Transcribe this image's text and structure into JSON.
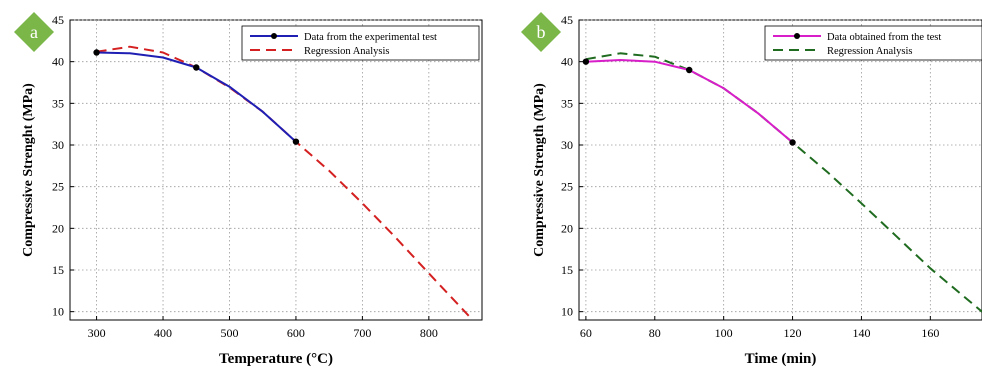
{
  "chart_data": [
    {
      "panel": "a",
      "type": "line",
      "xlabel": "Temperature (°C)",
      "ylabel": "Compressive Strenght (MPa)",
      "xlim": [
        260,
        880
      ],
      "ylim": [
        9,
        45
      ],
      "xticks": [
        300,
        400,
        500,
        600,
        700,
        800
      ],
      "yticks": [
        10,
        15,
        20,
        25,
        30,
        35,
        40,
        45
      ],
      "grid": true,
      "legend_position": "top-right",
      "series": [
        {
          "name": "Data from the experimental test",
          "color": "#1f1fb4",
          "style": "solid",
          "x": [
            300,
            350,
            400,
            450,
            500,
            550,
            600
          ],
          "y": [
            41.1,
            41.0,
            40.5,
            39.3,
            37.0,
            34.0,
            30.4
          ],
          "markers": [
            [
              300,
              41.1
            ],
            [
              450,
              39.3
            ],
            [
              600,
              30.4
            ]
          ]
        },
        {
          "name": "Regression Analysis",
          "color": "#d42020",
          "style": "dashed",
          "x": [
            300,
            350,
            400,
            450,
            500,
            550,
            600,
            650,
            700,
            750,
            800,
            860
          ],
          "y": [
            41.2,
            41.8,
            41.1,
            39.3,
            36.9,
            34.0,
            30.4,
            26.9,
            23.0,
            18.9,
            14.6,
            9.5
          ]
        }
      ]
    },
    {
      "panel": "b",
      "type": "line",
      "xlabel": "Time (min)",
      "ylabel": "Compressive Strength (MPa)",
      "xlim": [
        58,
        175
      ],
      "ylim": [
        9,
        45
      ],
      "xticks": [
        60,
        80,
        100,
        120,
        140,
        160
      ],
      "yticks": [
        10,
        15,
        20,
        25,
        30,
        35,
        40,
        45
      ],
      "grid": true,
      "legend_position": "top-right",
      "series": [
        {
          "name": "Data obtained from the test",
          "color": "#d81ec8",
          "style": "solid",
          "x": [
            60,
            70,
            80,
            90,
            100,
            110,
            120
          ],
          "y": [
            40.0,
            40.2,
            40.0,
            39.0,
            36.8,
            33.8,
            30.3
          ],
          "markers": [
            [
              60,
              40.0
            ],
            [
              90,
              39.0
            ],
            [
              120,
              30.3
            ]
          ]
        },
        {
          "name": "Regression Analysis",
          "color": "#1f6b1f",
          "style": "dashed",
          "x": [
            60,
            70,
            80,
            90,
            100,
            110,
            120,
            130,
            140,
            150,
            160,
            175
          ],
          "y": [
            40.3,
            41.0,
            40.6,
            39.0,
            36.8,
            33.8,
            30.3,
            26.8,
            23.0,
            19.1,
            15.2,
            10.0
          ]
        }
      ]
    }
  ],
  "badges": {
    "a": "a",
    "b": "b"
  },
  "colors": {
    "badge": "#7ab648",
    "grid": "#9a9a9a",
    "marker": "#000000"
  }
}
